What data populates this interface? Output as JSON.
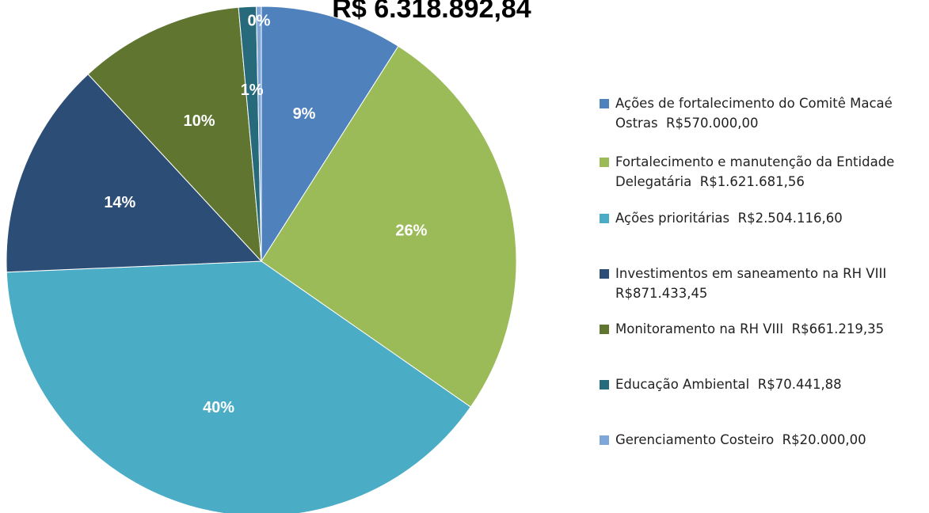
{
  "chart_data": {
    "type": "pie",
    "title": "R$ 6.318.892,84",
    "categories": [
      "Ações de fortalecimento do Comitê Macaé Ostras  R$570.000,00",
      "Fortalecimento e manutenção da Entidade Delegatária  R$1.621.681,56",
      "Ações prioritárias  R$2.504.116,60",
      "Investimentos em saneamento na RH VIII  R$871.433,45",
      "Monitoramento na RH VIII  R$661.219,35",
      "Educação Ambiental  R$70.441,88",
      "Gerenciamento Costeiro  R$20.000,00"
    ],
    "values": [
      9.02,
      25.66,
      39.63,
      13.79,
      10.46,
      1.11,
      0.32
    ],
    "value_labels": [
      "9%",
      "26%",
      "40%",
      "14%",
      "10%",
      "1%",
      "0%"
    ],
    "colors": [
      "#4f81bd",
      "#9bbb59",
      "#4bacc6",
      "#2c4d75",
      "#5f7530",
      "#276a7c",
      "#7fa6d8"
    ],
    "legend": "right"
  }
}
